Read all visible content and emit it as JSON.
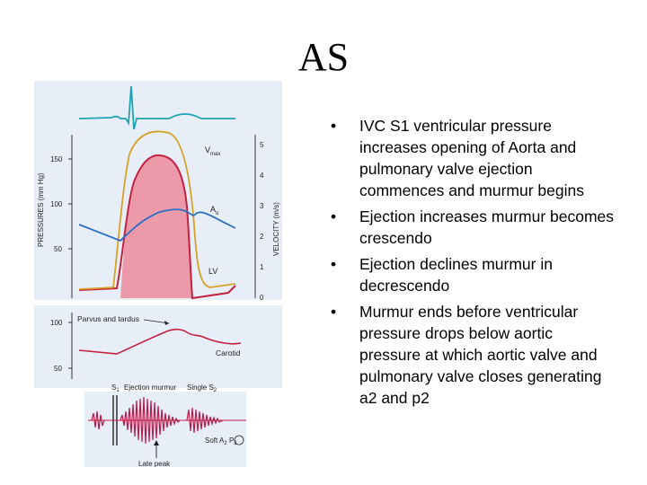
{
  "title": "AS",
  "figure": {
    "pressures_axis_label": "PRESSURES (mm Hg)",
    "velocity_axis_label": "VELOCITY (m/s)",
    "pressure_ticks": [
      "150",
      "100",
      "50"
    ],
    "velocity_ticks": [
      "5",
      "4",
      "3",
      "2",
      "1",
      "0"
    ],
    "label_vmax_main": "V",
    "label_vmax_sub": "max",
    "label_ao_main": "A",
    "label_ao_sub": "o",
    "label_lv": "LV",
    "carotid_ticks": [
      "100",
      "50"
    ],
    "label_parvus": "Parvus and tardus",
    "label_carotid": "Carotid",
    "label_s1_main": "S",
    "label_s1_sub": "1",
    "label_ejection_murmur": "Ejection murmur",
    "label_single_s2_main": "Single S",
    "label_single_s2_sub": "2",
    "label_soft_a2": "Soft A",
    "label_soft_a2_sub": "2",
    "label_soft_p2": "P",
    "label_soft_p2_sub": "2",
    "label_late_peak": "Late peak",
    "colors": {
      "ecg": "#1fa3b3",
      "vmax": "#d4a12a",
      "lv": "#c4203f",
      "lv_fill": "#ec9aaa",
      "ao": "#2a6fc4",
      "murmur": "#c0184a",
      "panel": "#e8eef7"
    }
  },
  "bullets": [
    "IVC  S1 ventricular pressure increases opening of Aorta and pulmonary valve ejection commences and murmur begins",
    "Ejection increases murmur becomes crescendo",
    "Ejection declines murmur in decrescendo",
    "Murmur ends before ventricular pressure drops below aortic pressure at which aortic valve and pulmonary valve closes generating a2 and p2"
  ],
  "bullet_symbol": "•"
}
